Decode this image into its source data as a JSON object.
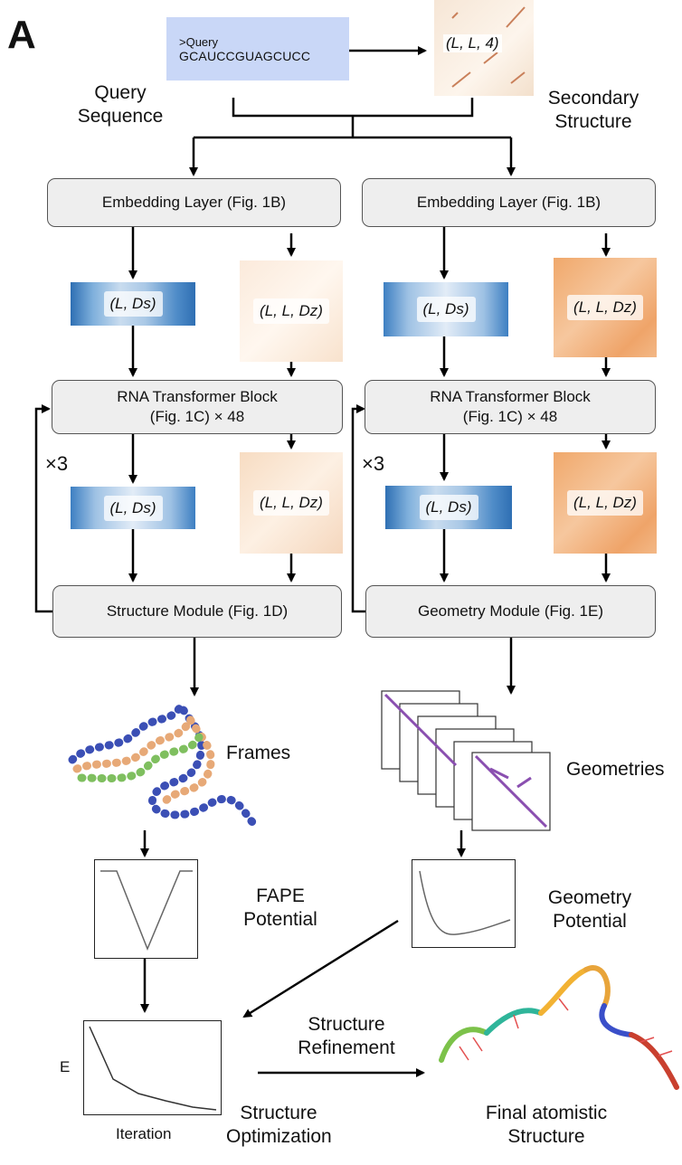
{
  "panel_letter": "A",
  "query": {
    "header": ">Query",
    "sequence": "GCAUCCGUAGCUCC"
  },
  "secondary_shape": "(L, L, 4)",
  "labels": {
    "query_sequence": [
      "Query",
      "Sequence"
    ],
    "secondary_structure": [
      "Secondary",
      "Structure"
    ],
    "frames": "Frames",
    "geometries": "Geometries",
    "fape": [
      "FAPE",
      "Potential"
    ],
    "geometry_potential": [
      "Geometry",
      "Potential"
    ],
    "structure_refinement": [
      "Structure",
      "Refinement"
    ],
    "structure_optimization": [
      "Structure",
      "Optimization"
    ],
    "final_structure": [
      "Final atomistic",
      "Structure"
    ],
    "repeat": "×3",
    "energy_axis": "E",
    "iteration_axis": "Iteration"
  },
  "left_column": {
    "embedding": "Embedding Layer (Fig. 1B)",
    "transformer": [
      "RNA Transformer Block",
      "(Fig. 1C) × 48"
    ],
    "module": "Structure Module (Fig. 1D)",
    "single": "(L, Ds)",
    "pair": "(L, L, Dz)"
  },
  "right_column": {
    "embedding": "Embedding Layer (Fig. 1B)",
    "transformer": [
      "RNA Transformer Block",
      "(Fig. 1C) × 48"
    ],
    "module": "Geometry Module (Fig. 1E)",
    "single": "(L, Ds)",
    "pair": "(L, L, Dz)"
  },
  "colors": {
    "query_box": "#c9d7f7",
    "box_fill": "#eeeeee",
    "arrow": "#000000"
  }
}
